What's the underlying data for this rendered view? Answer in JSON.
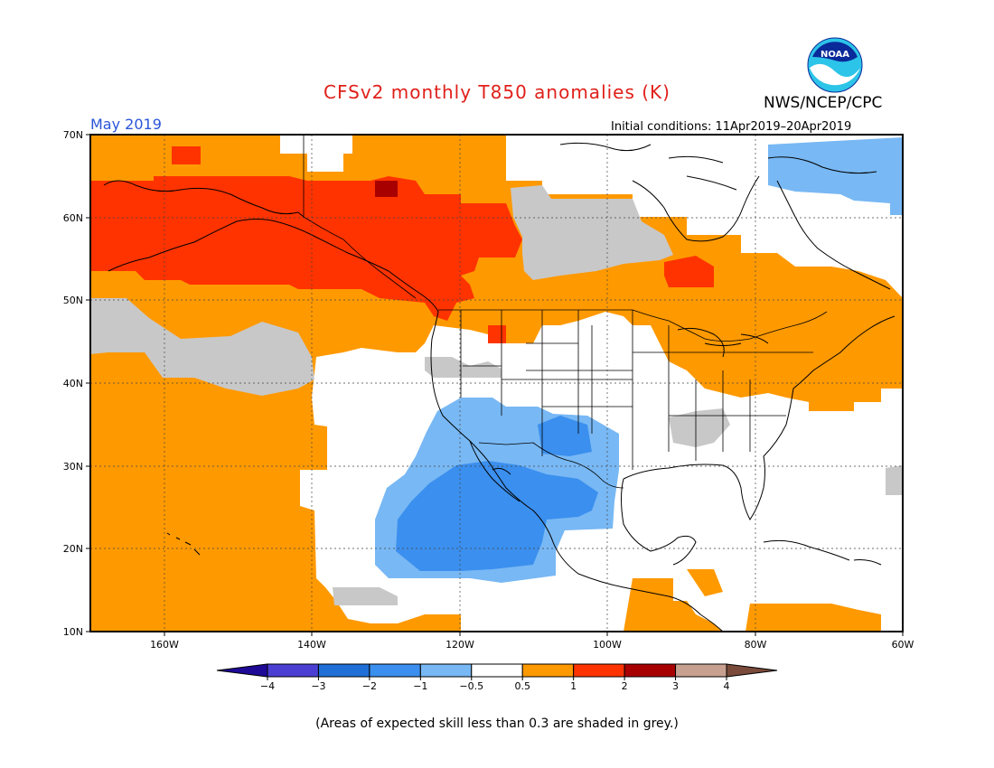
{
  "title": "CFSv2 monthly T850 anomalies (K)",
  "month": "May 2019",
  "agency": "NWS/NCEP/CPC",
  "initial_conditions": "Initial conditions: 11Apr2019–20Apr2019",
  "logo_text": "NOAA",
  "skill_note": "(Areas of expected skill less than 0.3 are shaded in grey.)",
  "lat_labels": [
    "70N",
    "60N",
    "50N",
    "40N",
    "30N",
    "20N",
    "10N"
  ],
  "lon_labels": [
    "160W",
    "140W",
    "120W",
    "100W",
    "80W",
    "60W"
  ],
  "colorbar": {
    "ticks": [
      "−4",
      "−3",
      "−2",
      "−1",
      "−0.5",
      "0.5",
      "1",
      "2",
      "3",
      "4"
    ],
    "colors": [
      "#1e0a96",
      "#4a3fd2",
      "#1f6fd6",
      "#3b8fee",
      "#78b8f4",
      "#ffffff",
      "#ff9900",
      "#ff3300",
      "#a80000",
      "#c8a090",
      "#7a4a3a"
    ]
  },
  "colors": {
    "orange": "#ff9900",
    "red": "#ff3300",
    "darkred": "#a80000",
    "grey": "#c8c8c8",
    "lightblue": "#78b8f4",
    "blue": "#3b8fee"
  }
}
